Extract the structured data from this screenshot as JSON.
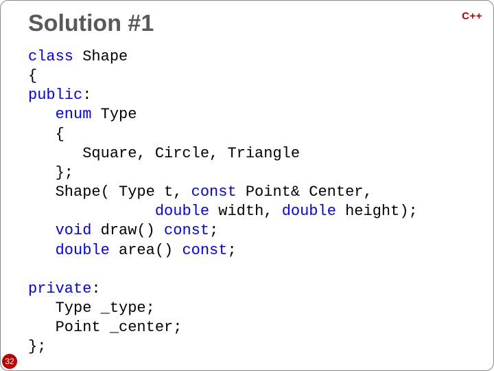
{
  "badge": "C++",
  "title": "Solution #1",
  "slide_number": "32",
  "colors": {
    "keyword": "#0000ff",
    "text": "#000000",
    "title": "#595959",
    "badge": "#c00000",
    "slide_num_bg": "#c00000",
    "slide_num_text": "#ffffff",
    "border": "#888888",
    "background": "#ffffff"
  },
  "typography": {
    "title_font": "Arial",
    "title_size_pt": 26,
    "code_font": "Consolas",
    "code_size_pt": 17
  },
  "code": {
    "tokens": [
      [
        {
          "t": "class",
          "k": true
        },
        {
          "t": " Shape"
        }
      ],
      [
        {
          "t": "{"
        }
      ],
      [
        {
          "t": "public",
          "k": true
        },
        {
          "t": ":"
        }
      ],
      [
        {
          "t": "   "
        },
        {
          "t": "enum",
          "k": true
        },
        {
          "t": " Type"
        }
      ],
      [
        {
          "t": "   {"
        }
      ],
      [
        {
          "t": "      Square, Circle, Triangle"
        }
      ],
      [
        {
          "t": "   };"
        }
      ],
      [
        {
          "t": "   Shape( Type t, "
        },
        {
          "t": "const",
          "k": true
        },
        {
          "t": " Point& Center,"
        }
      ],
      [
        {
          "t": "              "
        },
        {
          "t": "double",
          "k": true
        },
        {
          "t": " width, "
        },
        {
          "t": "double",
          "k": true
        },
        {
          "t": " height);"
        }
      ],
      [
        {
          "t": "   "
        },
        {
          "t": "void",
          "k": true
        },
        {
          "t": " draw() "
        },
        {
          "t": "const",
          "k": true
        },
        {
          "t": ";"
        }
      ],
      [
        {
          "t": "   "
        },
        {
          "t": "double",
          "k": true
        },
        {
          "t": " area() "
        },
        {
          "t": "const",
          "k": true
        },
        {
          "t": ";"
        }
      ],
      [
        {
          "t": ""
        }
      ],
      [
        {
          "t": "private",
          "k": true
        },
        {
          "t": ":"
        }
      ],
      [
        {
          "t": "   Type _type;"
        }
      ],
      [
        {
          "t": "   Point _center;"
        }
      ],
      [
        {
          "t": "};"
        }
      ]
    ]
  }
}
